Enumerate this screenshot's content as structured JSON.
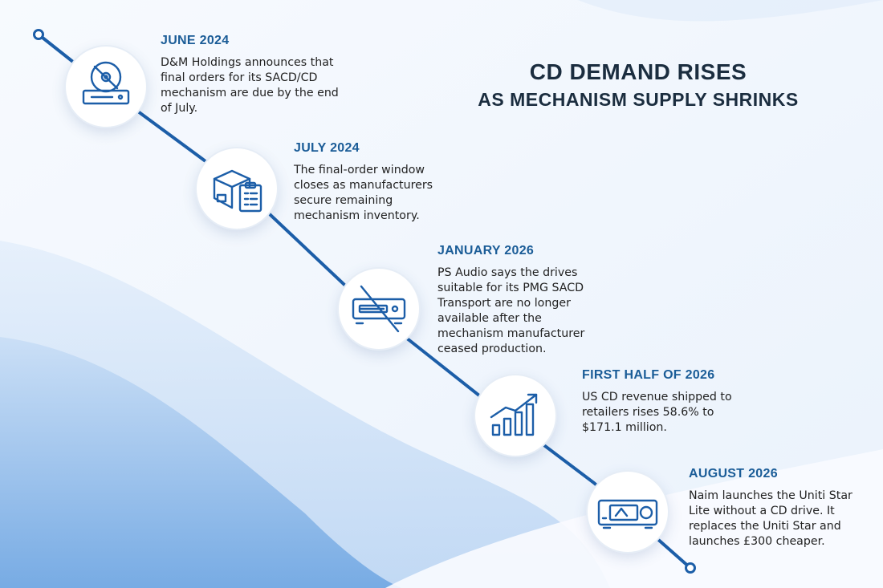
{
  "title": {
    "line1": "CD DEMAND RISES",
    "line2": "AS MECHANISM SUPPLY SHRINKS"
  },
  "colors": {
    "timeline": "#1c5ea8",
    "date_text": "#1a5c97",
    "title_text": "#1b2d3f"
  },
  "events": [
    {
      "date": "JUNE 2024",
      "description": "D&M Holdings announces that final orders for its SACD/CD mechanism are due by the end of July.",
      "icon": "cd-player-icon"
    },
    {
      "date": "JULY 2024",
      "description": "The final-order window closes as manufacturers secure remaining mechanism inventory.",
      "icon": "box-clipboard-icon"
    },
    {
      "date": "JANUARY 2026",
      "description": "PS Audio says the drives suitable for its PMG SACD Transport are no longer available after the mechanism manufacturer ceased production.",
      "icon": "crossed-out-transport-icon"
    },
    {
      "date": "FIRST HALF OF 2026",
      "description": "US CD revenue shipped to retailers rises 58.6% to $171.1 million.",
      "icon": "growth-chart-icon"
    },
    {
      "date": "AUGUST 2026",
      "description": "Naim launches the Uniti Star Lite without a CD drive. It replaces the Uniti Star and launches £300 cheaper.",
      "icon": "streamer-amplifier-icon"
    }
  ]
}
